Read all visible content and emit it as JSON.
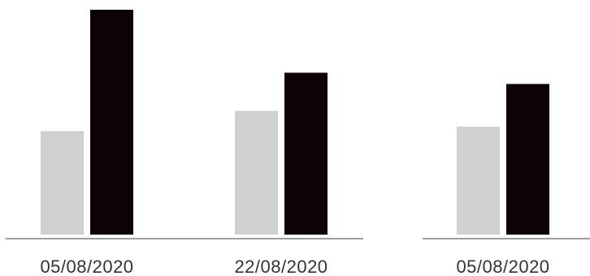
{
  "chart_data": [
    {
      "type": "bar",
      "categories": [
        "05/08/2020",
        "22/08/2020"
      ],
      "series": [
        {
          "values": [
            0.46,
            0.55
          ]
        },
        {
          "values": [
            1.0,
            0.72
          ]
        }
      ],
      "ylim": [
        0,
        1.0
      ],
      "grid": false,
      "legend": "none",
      "colors": [
        "#d0d0d0",
        "#0d0305"
      ]
    },
    {
      "type": "bar",
      "categories": [
        "05/08/2020"
      ],
      "series": [
        {
          "values": [
            0.48
          ]
        },
        {
          "values": [
            0.67
          ]
        }
      ],
      "ylim": [
        0,
        1.0
      ],
      "grid": false,
      "legend": "none",
      "colors": [
        "#d0d0d0",
        "#0d0305"
      ]
    }
  ],
  "colors": {
    "axis": "#666666",
    "tick_text": "#333333"
  }
}
